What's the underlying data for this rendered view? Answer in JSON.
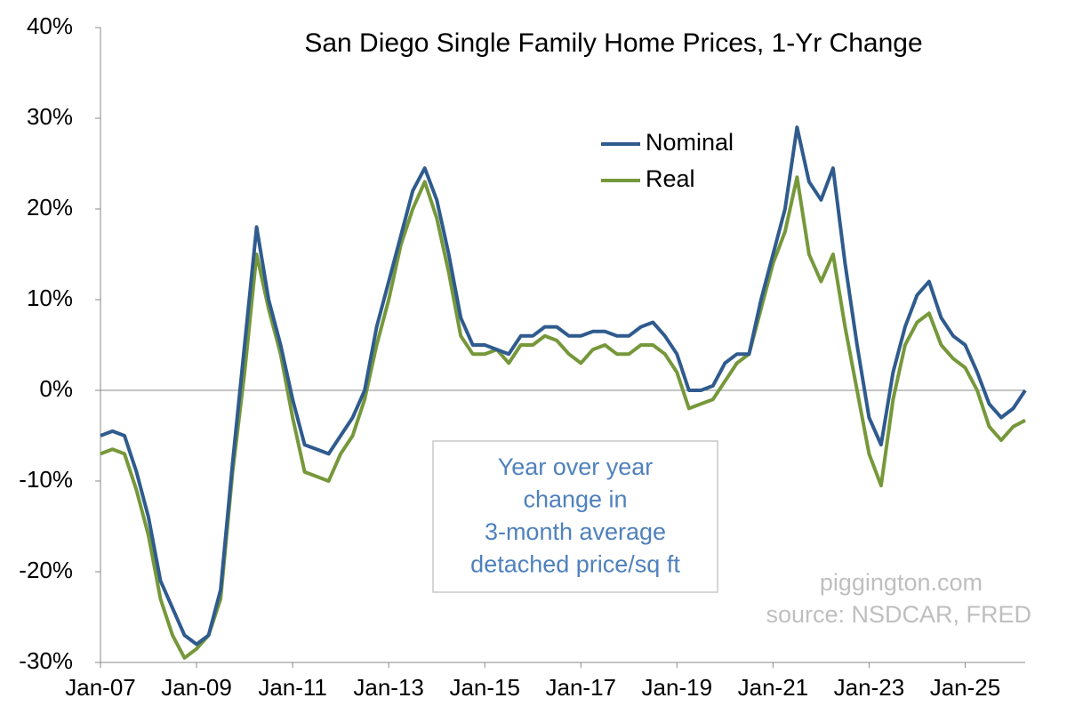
{
  "chart_data": {
    "type": "line",
    "title": "San Diego Single Family Home Prices, 1-Yr Change",
    "categories": [
      "Jan-07",
      null,
      null,
      null,
      null,
      null,
      null,
      null,
      "Jan-09",
      null,
      null,
      null,
      null,
      null,
      null,
      null,
      "Jan-11",
      null,
      null,
      null,
      null,
      null,
      null,
      null,
      "Jan-13",
      null,
      null,
      null,
      null,
      null,
      null,
      null,
      "Jan-15",
      null,
      null,
      null,
      null,
      null,
      null,
      null,
      "Jan-17",
      null,
      null,
      null,
      null,
      null,
      null,
      null,
      "Jan-19",
      null,
      null,
      null,
      null,
      null,
      null,
      null,
      "Jan-21",
      null,
      null,
      null,
      null,
      null,
      null,
      null,
      "Jan-23",
      null,
      null,
      null,
      null,
      null,
      null,
      null,
      "Jan-25",
      null,
      null,
      null,
      null,
      null
    ],
    "series": [
      {
        "name": "Nominal",
        "color": "#2f5b8e",
        "values": [
          -5,
          -4.5,
          -5,
          -9,
          -14,
          -21,
          -24,
          -27,
          -28,
          -27,
          -22,
          -8,
          5,
          18,
          10,
          5,
          -1,
          -6,
          -6.5,
          -7,
          -5,
          -3,
          0,
          7,
          12,
          17,
          22,
          24.5,
          21,
          15,
          8,
          5,
          5,
          4.5,
          4,
          6,
          6,
          7,
          7,
          6,
          6,
          6.5,
          6.5,
          6,
          6,
          7,
          7.5,
          6,
          4,
          0,
          0,
          0.5,
          3,
          4,
          4,
          10,
          15,
          20,
          29,
          23,
          21,
          24.5,
          14,
          5,
          -3,
          -6,
          2,
          7,
          10.5,
          12,
          8,
          6,
          5,
          2,
          -1.5,
          -3,
          -2,
          0
        ]
      },
      {
        "name": "Real",
        "color": "#76983a",
        "values": [
          -7,
          -6.5,
          -7,
          -11,
          -16,
          -23,
          -27,
          -29.5,
          -28.5,
          -27,
          -23,
          -9,
          2,
          15,
          9,
          4,
          -3,
          -9,
          -9.5,
          -10,
          -7,
          -5,
          -1,
          5,
          10,
          16,
          20,
          23,
          19,
          13,
          6,
          4,
          4,
          4.5,
          3,
          5,
          5,
          6,
          5.5,
          4,
          3,
          4.5,
          5,
          4,
          4,
          5,
          5,
          4,
          2,
          -2,
          -1.5,
          -1,
          1,
          3,
          4,
          9,
          14,
          17.5,
          23.5,
          15,
          12,
          15,
          7,
          0,
          -7,
          -10.5,
          -1,
          5,
          7.5,
          8.5,
          5,
          3.5,
          2.5,
          0,
          -4,
          -5.5,
          -4,
          -3.3
        ]
      }
    ],
    "ylim": [
      -30,
      40
    ],
    "yticks": [
      {
        "value": -30,
        "label": "-30%"
      },
      {
        "value": -20,
        "label": "-20%"
      },
      {
        "value": -10,
        "label": "-10%"
      },
      {
        "value": 0,
        "label": "0%"
      },
      {
        "value": 10,
        "label": "10%"
      },
      {
        "value": 20,
        "label": "20%"
      },
      {
        "value": 30,
        "label": "30%"
      },
      {
        "value": 40,
        "label": "40%"
      }
    ],
    "annotation": [
      "Year over year",
      "change in",
      "3-month average",
      "detached price/sq ft"
    ],
    "source": [
      "piggington.com",
      "source: NSDCAR, FRED"
    ]
  }
}
